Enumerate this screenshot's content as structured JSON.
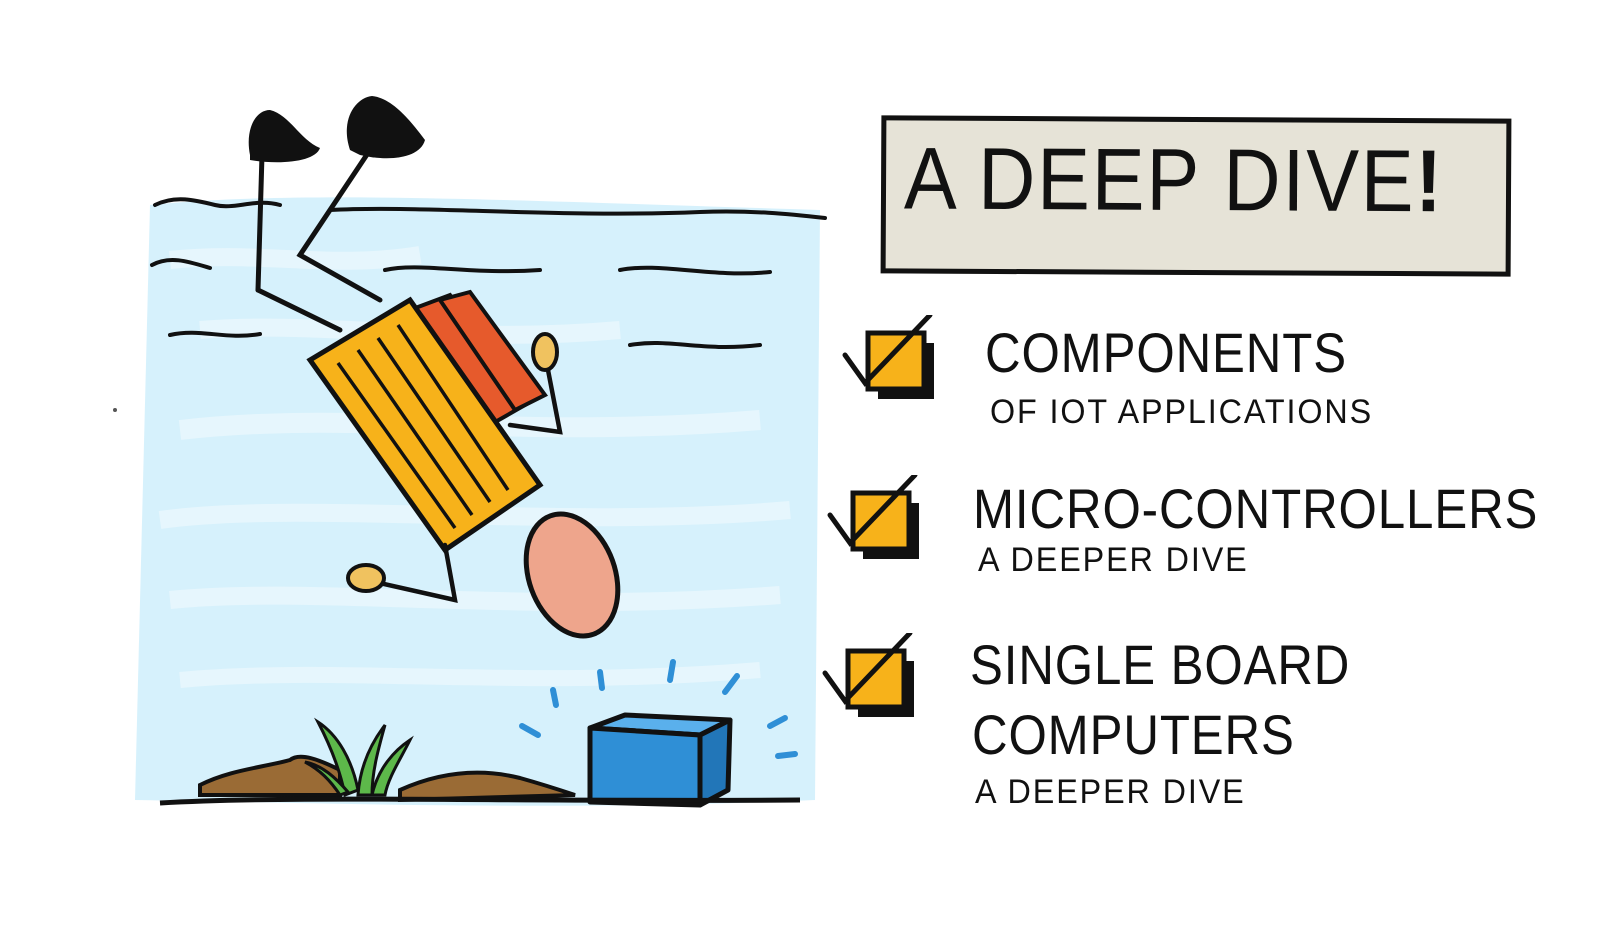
{
  "title": {
    "text": "A DEEP DIVE",
    "exclamation": "!"
  },
  "checklist": {
    "items": [
      {
        "title": "COMPONENTS",
        "subtitle": "OF IOT APPLICATIONS",
        "checked": true
      },
      {
        "title": "MICRO-CONTROLLERS",
        "subtitle": "A DEEPER DIVE",
        "checked": true
      },
      {
        "title_line1": "SINGLE BOARD",
        "title_line2": "COMPUTERS",
        "subtitle": "A DEEPER DIVE",
        "checked": true
      }
    ]
  },
  "colors": {
    "water": "#cfeefb",
    "book_yellow": "#f7b21a",
    "book_red": "#e65a2c",
    "hand": "#f0c25f",
    "head": "#eea58c",
    "box_blue": "#2f8fd6",
    "ground_brown": "#9a6b35",
    "grass_green": "#5db84a",
    "check_orange": "#f7b21a",
    "title_box_bg": "#e6e3d7",
    "ink": "#111111"
  },
  "icons": {
    "illustration": "diver-in-water-icon",
    "checkbox": "checked-box-icon"
  }
}
